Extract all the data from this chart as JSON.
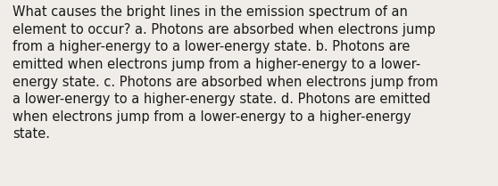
{
  "text": "What causes the bright lines in the emission spectrum of an element to occur? a. Photons are absorbed when electrons jump from a higher-energy to a lower-energy state. b. Photons are emitted when electrons jump from a higher-energy to a lower-energy state. c. Photons are absorbed when electrons jump from a lower-energy to a higher-energy state. d. Photons are emitted when electrons jump from a lower-energy to a higher-energy state.",
  "lines": [
    "What causes the bright lines in the emission spectrum of an",
    "element to occur? a. Photons are absorbed when electrons jump",
    "from a higher-energy to a lower-energy state. b. Photons are",
    "emitted when electrons jump from a higher-energy to a lower-",
    "energy state. c. Photons are absorbed when electrons jump from",
    "a lower-energy to a higher-energy state. d. Photons are emitted",
    "when electrons jump from a lower-energy to a higher-energy",
    "state."
  ],
  "background_color": "#f0ede8",
  "text_color": "#1a1a1a",
  "font_size": 10.5,
  "font_family": "DejaVu Sans",
  "fig_width": 5.58,
  "fig_height": 2.09,
  "dpi": 100
}
